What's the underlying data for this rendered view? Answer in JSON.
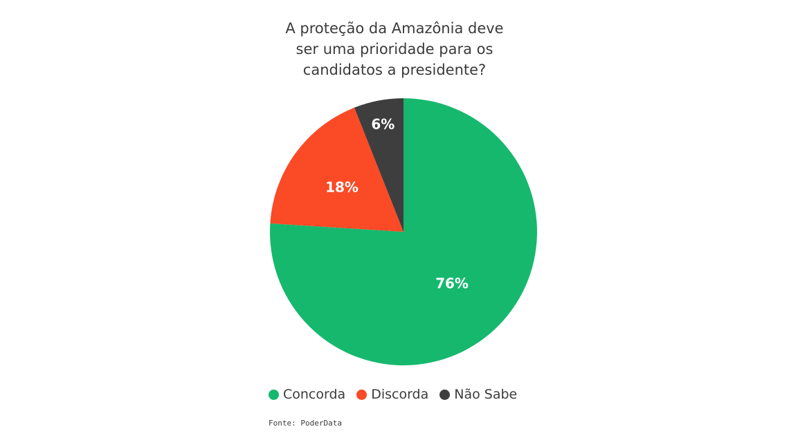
{
  "chart_data": {
    "type": "pie",
    "title_lines": [
      "A proteção da Amazônia deve",
      "ser uma prioridade para os",
      "candidatos a presidente?"
    ],
    "slices": [
      {
        "name": "Concorda",
        "value": 76,
        "label": "76%",
        "color": "#16b86e"
      },
      {
        "name": "Discorda",
        "value": 18,
        "label": "18%",
        "color": "#fb4a26"
      },
      {
        "name": "Não Sabe",
        "value": 6,
        "label": "6%",
        "color": "#3e3e3e"
      }
    ],
    "start": "12 o'clock",
    "direction": "clockwise",
    "legend_position": "bottom"
  },
  "source": "Fonte: PoderData"
}
